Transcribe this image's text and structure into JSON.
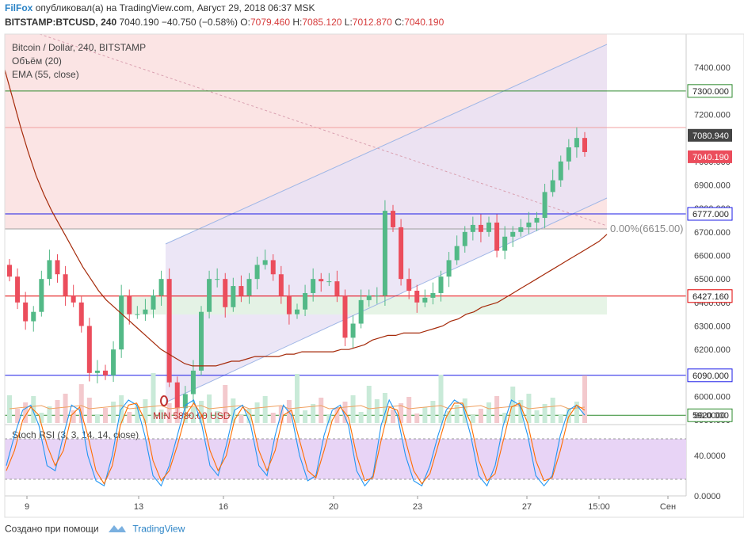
{
  "header": {
    "author": "FilFox",
    "published_text": "опубликовал(а) на TradingView.com, Август 29, 2018 06:37 MSK",
    "symbol": "BITSTAMP:BTCUSD, 240",
    "last": "7040.190",
    "change": "−40.750 (−0.58%)",
    "o_label": "O:",
    "o_value": "7079.460",
    "h_label": "H:",
    "h_value": "7085.120",
    "l_label": "L:",
    "l_value": "7012.870",
    "c_label": "C:",
    "c_value": "7040.190"
  },
  "legend": {
    "title": "Bitcoin / Dollar, 240, BITSTAMP",
    "volume": "Объём (20)",
    "ema": "EMA (55, close)"
  },
  "footer": {
    "created_with": "Создано при помощи",
    "brand": "TradingView"
  },
  "colors": {
    "up": "#53b987",
    "down": "#eb4d5c",
    "ema": "#a52a0a",
    "channel": "#9fb6e6",
    "level_blue": "#1a1ae6",
    "level_green": "#2d8a2d",
    "level_red": "#e00000"
  },
  "chart_data": [
    {
      "type": "candlestick",
      "title": "Bitcoin / Dollar, 240, BITSTAMP",
      "y_axis_ticks": [
        "5800.000",
        "5900.000",
        "6000.000",
        "6100.000",
        "6200.000",
        "6300.000",
        "6400.000",
        "6500.000",
        "6600.000",
        "6700.000",
        "6800.000",
        "6900.000",
        "7000.000",
        "7100.000",
        "7200.000",
        "7300.000",
        "7400.000"
      ],
      "x_axis_ticks": [
        "9",
        "13",
        "16",
        "20",
        "23",
        "27",
        "15:00",
        "Сен"
      ],
      "ylim": [
        5780,
        7440
      ],
      "levels": [
        {
          "label": "7300.000",
          "value": 7300,
          "color": "#2d8a2d"
        },
        {
          "label": "6777.000",
          "value": 6777,
          "color": "#1a1ae6"
        },
        {
          "label": "6427.160",
          "value": 6427.16,
          "color": "#e00000"
        },
        {
          "label": "6090.000",
          "value": 6090,
          "color": "#1a1ae6"
        },
        {
          "label": "5920.000",
          "value": 5920,
          "color": "#2d8a2d"
        }
      ],
      "price_tags": [
        {
          "label": "7080.940",
          "value": 7080.94,
          "color": "#444444"
        },
        {
          "label": "7040.190",
          "value": 7040.19,
          "color": "#eb4d5c"
        }
      ],
      "fib_label": "0.00%(6615.00)",
      "min_label": "MIN 5880.00 USD",
      "closes": [
        6510,
        6400,
        6320,
        6360,
        6500,
        6580,
        6520,
        6430,
        6400,
        6300,
        6100,
        6110,
        6090,
        6200,
        6430,
        6350,
        6350,
        6370,
        6430,
        6500,
        6060,
        5950,
        6010,
        6110,
        6360,
        6500,
        6500,
        6380,
        6470,
        6430,
        6500,
        6560,
        6580,
        6520,
        6430,
        6350,
        6370,
        6440,
        6500,
        6490,
        6490,
        6430,
        6250,
        6310,
        6410,
        6430,
        6430,
        6790,
        6720,
        6500,
        6450,
        6400,
        6420,
        6440,
        6510,
        6580,
        6640,
        6700,
        6730,
        6700,
        6740,
        6620,
        6680,
        6700,
        6720,
        6740,
        6760,
        6870,
        6920,
        7000,
        7060,
        7100,
        7040
      ],
      "ema_55": [
        7390,
        7270,
        7150,
        7040,
        6940,
        6860,
        6790,
        6730,
        6670,
        6610,
        6550,
        6500,
        6450,
        6410,
        6380,
        6350,
        6320,
        6290,
        6260,
        6230,
        6200,
        6180,
        6160,
        6140,
        6130,
        6130,
        6130,
        6130,
        6140,
        6150,
        6150,
        6160,
        6170,
        6170,
        6170,
        6170,
        6180,
        6180,
        6190,
        6190,
        6190,
        6190,
        6190,
        6200,
        6200,
        6210,
        6220,
        6240,
        6250,
        6260,
        6260,
        6270,
        6270,
        6270,
        6280,
        6290,
        6300,
        6320,
        6330,
        6350,
        6360,
        6380,
        6390,
        6400,
        6420,
        6440,
        6460,
        6480,
        6500,
        6520,
        6540,
        6560,
        6580,
        6600,
        6620,
        6640,
        6660,
        6690
      ]
    },
    {
      "type": "line",
      "title": "Stoch RSI (3, 3, 14, 14, close)",
      "y_axis_ticks": [
        "0.0000",
        "40.0000",
        "80.0000"
      ],
      "ylim": [
        0,
        100
      ],
      "bands": [
        20,
        80
      ],
      "series": [
        {
          "color": "#2196f3",
          "values": [
            30,
            60,
            85,
            90,
            70,
            30,
            25,
            60,
            90,
            85,
            40,
            15,
            10,
            40,
            85,
            95,
            90,
            60,
            20,
            10,
            30,
            60,
            90,
            95,
            70,
            30,
            20,
            50,
            85,
            90,
            70,
            30,
            20,
            60,
            90,
            80,
            40,
            15,
            20,
            60,
            85,
            90,
            70,
            25,
            10,
            20,
            70,
            95,
            80,
            40,
            15,
            10,
            30,
            60,
            85,
            95,
            90,
            60,
            20,
            10,
            30,
            70,
            95,
            90,
            60,
            20,
            10,
            20,
            60,
            85,
            90,
            80
          ]
        },
        {
          "color": "#ff6d00",
          "values": [
            25,
            45,
            75,
            88,
            80,
            50,
            30,
            45,
            80,
            88,
            60,
            25,
            12,
            30,
            70,
            90,
            92,
            75,
            35,
            15,
            25,
            50,
            80,
            92,
            80,
            45,
            25,
            40,
            75,
            88,
            80,
            45,
            25,
            45,
            80,
            85,
            55,
            25,
            18,
            45,
            75,
            88,
            78,
            40,
            15,
            18,
            55,
            88,
            85,
            55,
            25,
            12,
            22,
            50,
            78,
            92,
            92,
            72,
            35,
            15,
            22,
            55,
            88,
            92,
            72,
            35,
            15,
            18,
            45,
            78,
            90,
            85
          ]
        }
      ]
    }
  ]
}
